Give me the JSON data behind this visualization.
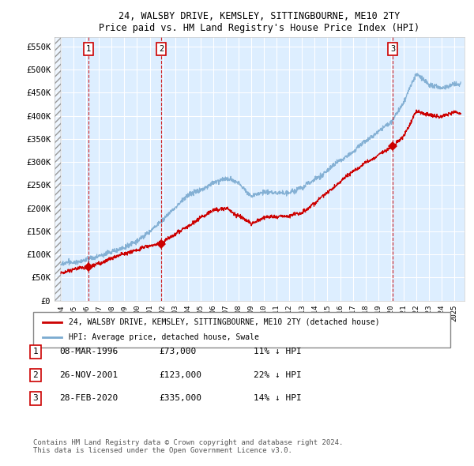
{
  "title": "24, WALSBY DRIVE, KEMSLEY, SITTINGBOURNE, ME10 2TY",
  "subtitle": "Price paid vs. HM Land Registry's House Price Index (HPI)",
  "ylim": [
    0,
    570000
  ],
  "yticks": [
    0,
    50000,
    100000,
    150000,
    200000,
    250000,
    300000,
    350000,
    400000,
    450000,
    500000,
    550000
  ],
  "ytick_labels": [
    "£0",
    "£50K",
    "£100K",
    "£150K",
    "£200K",
    "£250K",
    "£300K",
    "£350K",
    "£400K",
    "£450K",
    "£500K",
    "£550K"
  ],
  "transactions": [
    {
      "date": "08-MAR-1996",
      "year": 1996.19,
      "price": 73000,
      "label": "1",
      "pct": "11% ↓ HPI"
    },
    {
      "date": "26-NOV-2001",
      "year": 2001.9,
      "price": 123000,
      "label": "2",
      "pct": "22% ↓ HPI"
    },
    {
      "date": "28-FEB-2020",
      "year": 2020.16,
      "price": 335000,
      "label": "3",
      "pct": "14% ↓ HPI"
    }
  ],
  "sale_color": "#cc0000",
  "hpi_color": "#7aaad0",
  "bg_color": "#ffffff",
  "plot_bg_color": "#ddeeff",
  "hatch_color": "#aaaaaa",
  "grid_color": "#ffffff",
  "legend_label_sale": "24, WALSBY DRIVE, KEMSLEY, SITTINGBOURNE, ME10 2TY (detached house)",
  "legend_label_hpi": "HPI: Average price, detached house, Swale",
  "footer": "Contains HM Land Registry data © Crown copyright and database right 2024.\nThis data is licensed under the Open Government Licence v3.0.",
  "xmin": 1993.5,
  "xmax": 2025.8,
  "hpi_key_years": [
    1994,
    1995,
    1996,
    1997,
    1998,
    1999,
    2000,
    2001,
    2002,
    2003,
    2004,
    2005,
    2006,
    2007,
    2008,
    2009,
    2010,
    2011,
    2012,
    2013,
    2014,
    2015,
    2016,
    2017,
    2018,
    2019,
    2020,
    2021,
    2022,
    2023,
    2024,
    2025
  ],
  "hpi_key_vals": [
    78000,
    82000,
    88000,
    96000,
    105000,
    115000,
    133000,
    152000,
    175000,
    200000,
    230000,
    240000,
    255000,
    265000,
    255000,
    225000,
    235000,
    230000,
    230000,
    240000,
    258000,
    278000,
    302000,
    322000,
    342000,
    368000,
    390000,
    430000,
    490000,
    468000,
    460000,
    468000
  ],
  "sale_key_years": [
    1994,
    1995,
    1996.19,
    2001.9,
    2004,
    2006,
    2007,
    2008,
    2009,
    2010,
    2011,
    2012,
    2013,
    2014,
    2015,
    2016,
    2017,
    2018,
    2019,
    2020.16,
    2021,
    2022,
    2023,
    2024,
    2025
  ],
  "sale_key_vals": [
    60000,
    66000,
    73000,
    123000,
    160000,
    195000,
    200000,
    185000,
    168000,
    182000,
    185000,
    190000,
    198000,
    215000,
    238000,
    258000,
    280000,
    302000,
    318000,
    335000,
    360000,
    410000,
    400000,
    395000,
    405000
  ]
}
